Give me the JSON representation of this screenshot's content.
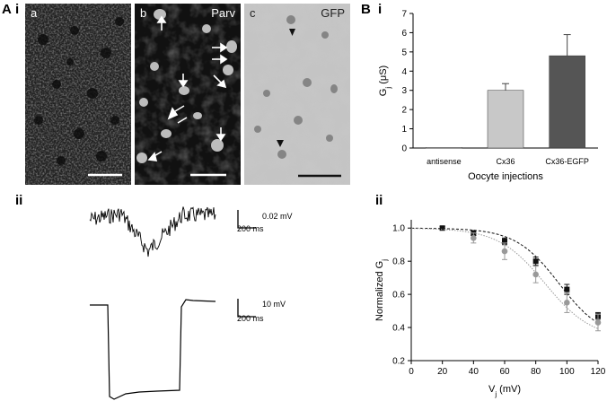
{
  "panel_labels": {
    "A": "A",
    "Ai": "i",
    "Aii": "ii",
    "B": "B",
    "Bi": "i",
    "Bii": "ii"
  },
  "micrographs": [
    {
      "letter": "a",
      "stain": ""
    },
    {
      "letter": "b",
      "stain": "Parv"
    },
    {
      "letter": "c",
      "stain": "GFP"
    }
  ],
  "traces": {
    "top_scale_v": "0.02 mV",
    "top_scale_t": "200 ms",
    "bottom_scale_v": "10 mV",
    "bottom_scale_t": "200 ms"
  },
  "chart_data": [
    {
      "type": "bar",
      "title": "",
      "categories": [
        "antisense",
        "Cx36",
        "Cx36-EGFP"
      ],
      "values": [
        0.03,
        3.0,
        4.8
      ],
      "errors": [
        0.02,
        0.35,
        1.1
      ],
      "colors": [
        "#d8d8d8",
        "#c8c8c8",
        "#555555"
      ],
      "xlabel": "Oocyte injections",
      "ylabel_main": "G",
      "ylabel_sub": "j",
      "ylabel_unit": " (μS)",
      "ylim": [
        0,
        7
      ],
      "yticks": [
        0,
        1,
        2,
        3,
        4,
        5,
        6,
        7
      ]
    },
    {
      "type": "line",
      "title": "",
      "xlabel_main": "V",
      "xlabel_sub": "j",
      "xlabel_unit": " (mV)",
      "ylabel_main": "Normalized G",
      "ylabel_sub": "j",
      "xlim": [
        0,
        120
      ],
      "ylim": [
        0.2,
        1.05
      ],
      "xticks": [
        0,
        20,
        40,
        60,
        80,
        100,
        120
      ],
      "yticks": [
        0.2,
        0.4,
        0.6,
        0.8,
        1.0
      ],
      "series": [
        {
          "marker": "square",
          "color": "#111111",
          "x": [
            20,
            40,
            60,
            80,
            100,
            120
          ],
          "y": [
            1.0,
            0.97,
            0.92,
            0.8,
            0.63,
            0.47
          ],
          "err": [
            0.01,
            0.015,
            0.02,
            0.025,
            0.03,
            0.02
          ],
          "fit": {
            "gmin": 0.33,
            "v0": 95,
            "k": 14
          }
        },
        {
          "marker": "circle",
          "color": "#999999",
          "x": [
            40,
            60,
            80,
            100,
            120
          ],
          "y": [
            0.94,
            0.86,
            0.72,
            0.55,
            0.43
          ],
          "err": [
            0.03,
            0.05,
            0.05,
            0.06,
            0.05
          ],
          "fit": {
            "gmin": 0.33,
            "v0": 86,
            "k": 15
          }
        }
      ]
    }
  ]
}
